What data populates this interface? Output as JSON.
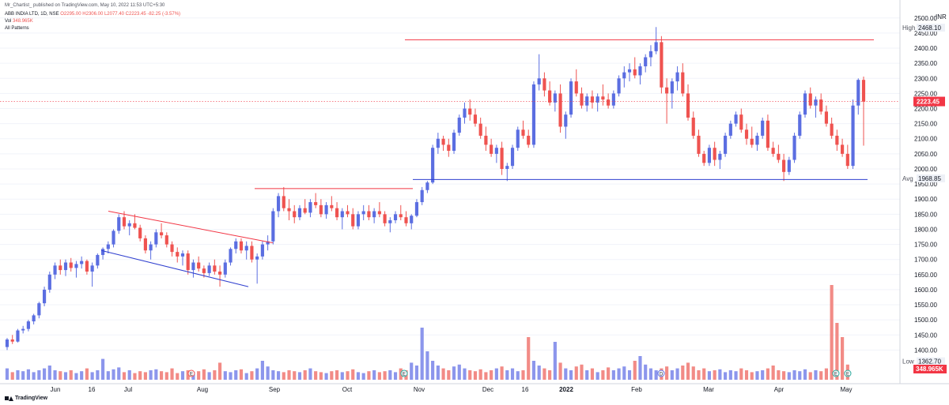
{
  "header": {
    "line1": "Mr_Chartist_ published on TradingView.com, May 10, 2022 11:53 UTC+5:30",
    "symbol": "ABB INDIA LTD, 1D, NSE",
    "ohlc": "O2295.00 H2306.00 L2077.40 C2223.45 -82.25 (-3.57%)",
    "vol_label": "Vol",
    "vol_value": "348.965K",
    "patterns": "All Patterns"
  },
  "footer": {
    "brand": "TradingView"
  },
  "colors": {
    "up": "#5b6ee1",
    "down": "#ef5350",
    "vol_up": "#8c96ec",
    "vol_down": "#f28b86",
    "resistance": "#f23645",
    "support": "#2f3fcf",
    "price_tag": "#f23645",
    "grid": "#f0f3fa",
    "label_bg": "#eef1f7"
  },
  "chart_data": {
    "type": "candlestick",
    "title": "ABB INDIA LTD, 1D, NSE",
    "y_unit": "INR",
    "ylim": [
      1362.7,
      2500
    ],
    "y_ticks": [
      "1400.00",
      "1450.00",
      "1500.00",
      "1550.00",
      "1600.00",
      "1650.00",
      "1700.00",
      "1750.00",
      "1800.00",
      "1850.00",
      "1900.00",
      "1950.00",
      "2000.00",
      "2050.00",
      "2100.00",
      "2150.00",
      "2200.00",
      "2250.00",
      "2300.00",
      "2350.00",
      "2400.00",
      "2450.00",
      "2500.00"
    ],
    "x_ticks": [
      "Jun",
      "16",
      "Jul",
      "Aug",
      "Sep",
      "Oct",
      "Nov",
      "Dec",
      "16",
      "2022",
      "Feb",
      "Mar",
      "Apr",
      "May"
    ],
    "x_ticks_bold": [
      "2022"
    ],
    "markers": [
      {
        "label": "High",
        "value": "2468.10",
        "price": 2468.1
      },
      {
        "label": "Avg",
        "value": "1968.85",
        "price": 1968.85
      },
      {
        "label": "Low",
        "value": "1362.70",
        "price": 1362.7
      }
    ],
    "last_price": {
      "value": "2223.45",
      "price": 2223.45
    },
    "last_volume": {
      "value": "348.965K"
    },
    "trendlines": [
      {
        "name": "channel-top",
        "points": [
          [
            "mid-Jun",
            1860
          ],
          [
            "late-Aug",
            1755
          ]
        ],
        "color": "resistance"
      },
      {
        "name": "channel-bottom",
        "points": [
          [
            "mid-Jun",
            1730
          ],
          [
            "late-Aug",
            1610
          ]
        ],
        "color": "support"
      },
      {
        "name": "sep-resistance",
        "points": [
          [
            "Sep",
            1935
          ],
          [
            "Nov",
            1935
          ]
        ],
        "color": "resistance"
      },
      {
        "name": "major-resistance",
        "points": [
          [
            "Nov",
            2428
          ],
          [
            "May",
            2428
          ]
        ],
        "color": "resistance"
      },
      {
        "name": "major-support",
        "points": [
          [
            "Nov",
            1965
          ],
          [
            "May",
            1965
          ]
        ],
        "color": "support"
      }
    ],
    "event_badges": [
      "E",
      "E",
      "D",
      "E",
      "E",
      "D",
      "E"
    ],
    "candles": [
      [
        1410,
        1440,
        1400,
        1435
      ],
      [
        1435,
        1450,
        1420,
        1428
      ],
      [
        1428,
        1470,
        1425,
        1465
      ],
      [
        1465,
        1480,
        1455,
        1470
      ],
      [
        1470,
        1500,
        1462,
        1495
      ],
      [
        1495,
        1520,
        1485,
        1515
      ],
      [
        1515,
        1560,
        1505,
        1555
      ],
      [
        1555,
        1610,
        1545,
        1600
      ],
      [
        1600,
        1660,
        1590,
        1650
      ],
      [
        1650,
        1690,
        1635,
        1680
      ],
      [
        1680,
        1700,
        1650,
        1665
      ],
      [
        1665,
        1700,
        1645,
        1690
      ],
      [
        1690,
        1705,
        1660,
        1672
      ],
      [
        1672,
        1695,
        1640,
        1685
      ],
      [
        1685,
        1710,
        1670,
        1695
      ],
      [
        1695,
        1700,
        1650,
        1660
      ],
      [
        1660,
        1690,
        1610,
        1680
      ],
      [
        1680,
        1720,
        1670,
        1715
      ],
      [
        1715,
        1740,
        1700,
        1735
      ],
      [
        1735,
        1760,
        1720,
        1750
      ],
      [
        1750,
        1800,
        1740,
        1795
      ],
      [
        1795,
        1850,
        1785,
        1840
      ],
      [
        1840,
        1860,
        1800,
        1810
      ],
      [
        1810,
        1830,
        1780,
        1820
      ],
      [
        1820,
        1850,
        1800,
        1805
      ],
      [
        1805,
        1815,
        1760,
        1770
      ],
      [
        1770,
        1780,
        1720,
        1730
      ],
      [
        1730,
        1760,
        1700,
        1750
      ],
      [
        1750,
        1800,
        1740,
        1790
      ],
      [
        1790,
        1820,
        1770,
        1780
      ],
      [
        1780,
        1790,
        1740,
        1750
      ],
      [
        1750,
        1760,
        1710,
        1725
      ],
      [
        1725,
        1740,
        1690,
        1710
      ],
      [
        1710,
        1730,
        1680,
        1720
      ],
      [
        1720,
        1730,
        1650,
        1665
      ],
      [
        1665,
        1700,
        1640,
        1690
      ],
      [
        1690,
        1710,
        1660,
        1670
      ],
      [
        1670,
        1680,
        1640,
        1655
      ],
      [
        1655,
        1690,
        1645,
        1680
      ],
      [
        1680,
        1700,
        1650,
        1660
      ],
      [
        1660,
        1680,
        1610,
        1650
      ],
      [
        1650,
        1700,
        1640,
        1690
      ],
      [
        1690,
        1740,
        1680,
        1735
      ],
      [
        1735,
        1770,
        1720,
        1760
      ],
      [
        1760,
        1770,
        1720,
        1730
      ],
      [
        1730,
        1760,
        1700,
        1745
      ],
      [
        1745,
        1760,
        1690,
        1700
      ],
      [
        1700,
        1720,
        1620,
        1710
      ],
      [
        1710,
        1760,
        1700,
        1750
      ],
      [
        1750,
        1780,
        1730,
        1760
      ],
      [
        1760,
        1870,
        1750,
        1860
      ],
      [
        1860,
        1920,
        1840,
        1910
      ],
      [
        1910,
        1940,
        1860,
        1870
      ],
      [
        1870,
        1900,
        1830,
        1860
      ],
      [
        1860,
        1880,
        1820,
        1840
      ],
      [
        1840,
        1880,
        1830,
        1870
      ],
      [
        1870,
        1900,
        1850,
        1855
      ],
      [
        1855,
        1900,
        1840,
        1890
      ],
      [
        1890,
        1920,
        1870,
        1880
      ],
      [
        1880,
        1900,
        1840,
        1850
      ],
      [
        1850,
        1890,
        1835,
        1880
      ],
      [
        1880,
        1910,
        1860,
        1870
      ],
      [
        1870,
        1890,
        1830,
        1840
      ],
      [
        1840,
        1870,
        1800,
        1860
      ],
      [
        1860,
        1880,
        1840,
        1850
      ],
      [
        1850,
        1870,
        1800,
        1810
      ],
      [
        1810,
        1860,
        1800,
        1850
      ],
      [
        1850,
        1880,
        1830,
        1860
      ],
      [
        1860,
        1880,
        1830,
        1840
      ],
      [
        1840,
        1870,
        1820,
        1860
      ],
      [
        1860,
        1890,
        1840,
        1850
      ],
      [
        1850,
        1860,
        1810,
        1820
      ],
      [
        1820,
        1840,
        1790,
        1830
      ],
      [
        1830,
        1860,
        1820,
        1850
      ],
      [
        1850,
        1880,
        1830,
        1840
      ],
      [
        1840,
        1860,
        1810,
        1820
      ],
      [
        1820,
        1850,
        1800,
        1845
      ],
      [
        1845,
        1900,
        1840,
        1890
      ],
      [
        1890,
        1940,
        1880,
        1930
      ],
      [
        1930,
        1960,
        1920,
        1955
      ],
      [
        1955,
        2080,
        1950,
        2070
      ],
      [
        2070,
        2120,
        2050,
        2100
      ],
      [
        2100,
        2110,
        2060,
        2080
      ],
      [
        2080,
        2100,
        2040,
        2060
      ],
      [
        2060,
        2130,
        2050,
        2120
      ],
      [
        2120,
        2180,
        2110,
        2170
      ],
      [
        2170,
        2220,
        2150,
        2200
      ],
      [
        2200,
        2230,
        2160,
        2180
      ],
      [
        2180,
        2200,
        2140,
        2150
      ],
      [
        2150,
        2170,
        2100,
        2110
      ],
      [
        2110,
        2140,
        2060,
        2080
      ],
      [
        2080,
        2100,
        2040,
        2050
      ],
      [
        2050,
        2080,
        2020,
        2070
      ],
      [
        2070,
        2090,
        1980,
        2000
      ],
      [
        2000,
        2020,
        1960,
        2010
      ],
      [
        2010,
        2080,
        2000,
        2070
      ],
      [
        2070,
        2140,
        2060,
        2130
      ],
      [
        2130,
        2160,
        2100,
        2110
      ],
      [
        2110,
        2130,
        2070,
        2080
      ],
      [
        2080,
        2290,
        2070,
        2280
      ],
      [
        2280,
        2380,
        2260,
        2300
      ],
      [
        2300,
        2320,
        2240,
        2260
      ],
      [
        2260,
        2290,
        2210,
        2220
      ],
      [
        2220,
        2260,
        2190,
        2250
      ],
      [
        2250,
        2280,
        2120,
        2140
      ],
      [
        2140,
        2190,
        2100,
        2180
      ],
      [
        2180,
        2300,
        2170,
        2290
      ],
      [
        2290,
        2330,
        2240,
        2250
      ],
      [
        2250,
        2270,
        2200,
        2210
      ],
      [
        2210,
        2250,
        2190,
        2240
      ],
      [
        2240,
        2260,
        2200,
        2220
      ],
      [
        2220,
        2250,
        2190,
        2240
      ],
      [
        2240,
        2280,
        2210,
        2230
      ],
      [
        2230,
        2250,
        2200,
        2210
      ],
      [
        2210,
        2260,
        2200,
        2250
      ],
      [
        2250,
        2310,
        2240,
        2300
      ],
      [
        2300,
        2340,
        2270,
        2320
      ],
      [
        2320,
        2350,
        2290,
        2330
      ],
      [
        2330,
        2370,
        2300,
        2310
      ],
      [
        2310,
        2350,
        2280,
        2340
      ],
      [
        2340,
        2380,
        2320,
        2370
      ],
      [
        2370,
        2410,
        2340,
        2390
      ],
      [
        2390,
        2470,
        2380,
        2420
      ],
      [
        2420,
        2440,
        2250,
        2270
      ],
      [
        2270,
        2300,
        2150,
        2250
      ],
      [
        2250,
        2300,
        2200,
        2290
      ],
      [
        2290,
        2340,
        2260,
        2320
      ],
      [
        2320,
        2350,
        2240,
        2250
      ],
      [
        2250,
        2280,
        2160,
        2170
      ],
      [
        2170,
        2190,
        2100,
        2110
      ],
      [
        2110,
        2130,
        2040,
        2050
      ],
      [
        2050,
        2060,
        2010,
        2020
      ],
      [
        2020,
        2080,
        2010,
        2070
      ],
      [
        2070,
        2090,
        2010,
        2030
      ],
      [
        2030,
        2060,
        2000,
        2050
      ],
      [
        2050,
        2120,
        2040,
        2110
      ],
      [
        2110,
        2160,
        2100,
        2150
      ],
      [
        2150,
        2190,
        2140,
        2180
      ],
      [
        2180,
        2200,
        2120,
        2130
      ],
      [
        2130,
        2150,
        2080,
        2100
      ],
      [
        2100,
        2140,
        2070,
        2080
      ],
      [
        2080,
        2120,
        2060,
        2110
      ],
      [
        2110,
        2170,
        2100,
        2160
      ],
      [
        2160,
        2180,
        2060,
        2070
      ],
      [
        2070,
        2090,
        2040,
        2050
      ],
      [
        2050,
        2080,
        2020,
        2030
      ],
      [
        2030,
        2050,
        1960,
        1990
      ],
      [
        1990,
        2040,
        1980,
        2030
      ],
      [
        2030,
        2120,
        2020,
        2110
      ],
      [
        2110,
        2190,
        2100,
        2180
      ],
      [
        2180,
        2260,
        2170,
        2250
      ],
      [
        2250,
        2270,
        2200,
        2210
      ],
      [
        2210,
        2240,
        2170,
        2230
      ],
      [
        2230,
        2250,
        2180,
        2190
      ],
      [
        2190,
        2210,
        2140,
        2150
      ],
      [
        2150,
        2170,
        2100,
        2110
      ],
      [
        2110,
        2130,
        2060,
        2080
      ],
      [
        2080,
        2100,
        2040,
        2050
      ],
      [
        2050,
        2080,
        2000,
        2010
      ],
      [
        2010,
        2230,
        2000,
        2210
      ],
      [
        2210,
        2300,
        2180,
        2295
      ],
      [
        2295,
        2306,
        2077,
        2223
      ]
    ],
    "volumes": [
      0.12,
      0.08,
      0.1,
      0.09,
      0.11,
      0.08,
      0.1,
      0.12,
      0.15,
      0.1,
      0.09,
      0.08,
      0.1,
      0.07,
      0.09,
      0.12,
      0.08,
      0.1,
      0.22,
      0.09,
      0.11,
      0.13,
      0.08,
      0.1,
      0.07,
      0.09,
      0.08,
      0.1,
      0.11,
      0.09,
      0.08,
      0.12,
      0.07,
      0.09,
      0.1,
      0.08,
      0.09,
      0.11,
      0.08,
      0.1,
      0.18,
      0.09,
      0.08,
      0.1,
      0.11,
      0.07,
      0.09,
      0.12,
      0.2,
      0.14,
      0.1,
      0.09,
      0.08,
      0.1,
      0.09,
      0.08,
      0.1,
      0.12,
      0.09,
      0.08,
      0.07,
      0.09,
      0.1,
      0.08,
      0.09,
      0.11,
      0.08,
      0.07,
      0.09,
      0.1,
      0.08,
      0.09,
      0.1,
      0.08,
      0.12,
      0.1,
      0.18,
      0.15,
      0.55,
      0.3,
      0.2,
      0.15,
      0.12,
      0.1,
      0.14,
      0.16,
      0.12,
      0.1,
      0.09,
      0.11,
      0.08,
      0.1,
      0.12,
      0.14,
      0.1,
      0.12,
      0.09,
      0.1,
      0.45,
      0.2,
      0.15,
      0.12,
      0.1,
      0.4,
      0.18,
      0.12,
      0.1,
      0.14,
      0.16,
      0.1,
      0.12,
      0.08,
      0.1,
      0.13,
      0.1,
      0.12,
      0.14,
      0.1,
      0.2,
      0.25,
      0.16,
      0.12,
      0.1,
      0.12,
      0.14,
      0.1,
      0.12,
      0.15,
      0.18,
      0.14,
      0.1,
      0.12,
      0.09,
      0.1,
      0.11,
      0.08,
      0.1,
      0.09,
      0.12,
      0.1,
      0.08,
      0.09,
      0.1,
      0.12,
      0.15,
      0.1,
      0.09,
      0.08,
      0.1,
      0.09,
      0.11,
      0.08,
      0.1,
      0.09,
      0.12,
      1.0,
      0.6,
      0.45,
      0.16
    ]
  }
}
